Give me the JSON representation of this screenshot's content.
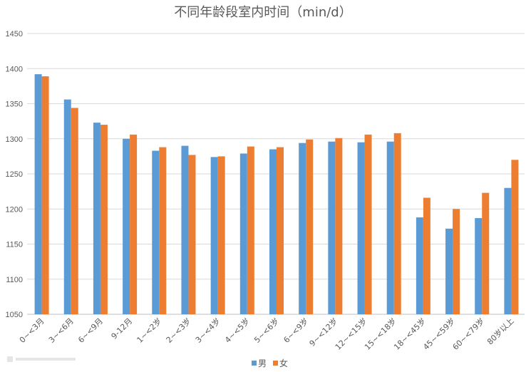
{
  "chart_data": {
    "type": "bar",
    "title": "不同年龄段室内时间（min/d）",
    "categories": [
      "0~<3月",
      "3~<6月",
      "6~<9月",
      "9-12月",
      "1~<2岁",
      "2~<3岁",
      "3~<4岁",
      "4~<5岁",
      "5~<6岁",
      "6~<9岁",
      "9~<12岁",
      "12~<15岁",
      "15~<18岁",
      "18~<45岁",
      "45~<59岁",
      "60~<79岁",
      "80岁以上"
    ],
    "series": [
      {
        "name": "男",
        "color": "#5b9bd5",
        "values": [
          1392,
          1356,
          1323,
          1300,
          1283,
          1290,
          1274,
          1279,
          1285,
          1294,
          1296,
          1295,
          1296,
          1188,
          1172,
          1187,
          1230
        ]
      },
      {
        "name": "女",
        "color": "#ed7d31",
        "values": [
          1389,
          1344,
          1320,
          1306,
          1288,
          1277,
          1275,
          1289,
          1288,
          1299,
          1301,
          1306,
          1308,
          1216,
          1200,
          1223,
          1270
        ]
      }
    ],
    "ylim": [
      1050,
      1450
    ],
    "yticks": [
      1050,
      1100,
      1150,
      1200,
      1250,
      1300,
      1350,
      1400,
      1450
    ],
    "xlabel": "",
    "ylabel": "",
    "grid": true,
    "legend_position": "bottom"
  }
}
